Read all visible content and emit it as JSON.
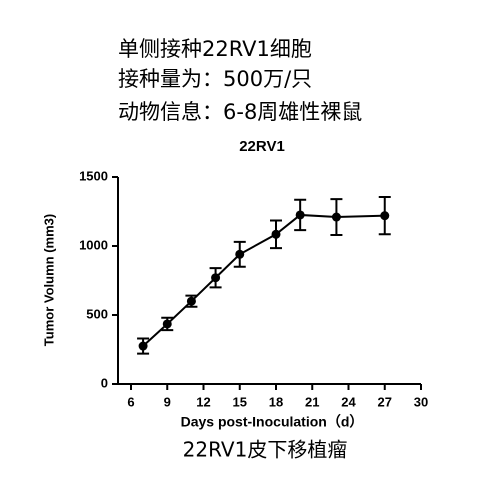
{
  "chart_data": {
    "type": "line",
    "header": [
      "单侧接种22RV1细胞",
      "接种量为：500万/只",
      "动物信息：6-8周雄性裸鼠"
    ],
    "title": "22RV1",
    "y_label": "Tumor Volumn (mm3)",
    "x_label": "Days post-Inoculation（d）",
    "caption": "22RV1皮下移植瘤",
    "x": [
      7,
      9,
      11,
      13,
      15,
      18,
      20,
      23,
      27
    ],
    "values": [
      275,
      435,
      600,
      770,
      940,
      1085,
      1225,
      1210,
      1220
    ],
    "errors": [
      55,
      45,
      40,
      70,
      90,
      100,
      110,
      130,
      135
    ],
    "color": "#000000",
    "xlim": [
      6,
      30
    ],
    "xticks": [
      6,
      9,
      12,
      15,
      18,
      21,
      24,
      27,
      30
    ],
    "ylim": [
      0,
      1500
    ],
    "yticks": [
      0,
      500,
      1000,
      1500
    ]
  }
}
